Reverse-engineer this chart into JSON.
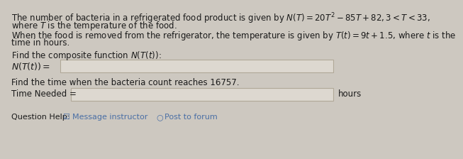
{
  "bg_color": "#cdc8c0",
  "text_color": "#1a1a1a",
  "link_color": "#4a6fa5",
  "line1a": "The number of bacteria in a refrigerated food product is given by $N(T) = 20T^2 - 85T + 82, 3 < T < 33,$",
  "line1b": "where $T$ is the temperature of the food.",
  "line2a": "When the food is removed from the refrigerator, the temperature is given by $T(t) = 9t + 1.5$, where $t$ is the",
  "line2b": "time in hours.",
  "line3": "Find the composite function $N(T(t))$:",
  "label1": "$N(T(t)) =$",
  "line4": "Find the time when the bacteria count reaches 16757.",
  "label2": "Time Needed =",
  "hours_label": "hours",
  "help_prefix": "Question Help: ",
  "help_icon1": "☑",
  "help_msg": "Message instructor",
  "help_icon2": "○",
  "help_post": "Post to forum",
  "font_size": 8.5,
  "box_fill": "#e8e4de",
  "box_edge": "#b0a898",
  "box_fill2": "#ddd8d0"
}
